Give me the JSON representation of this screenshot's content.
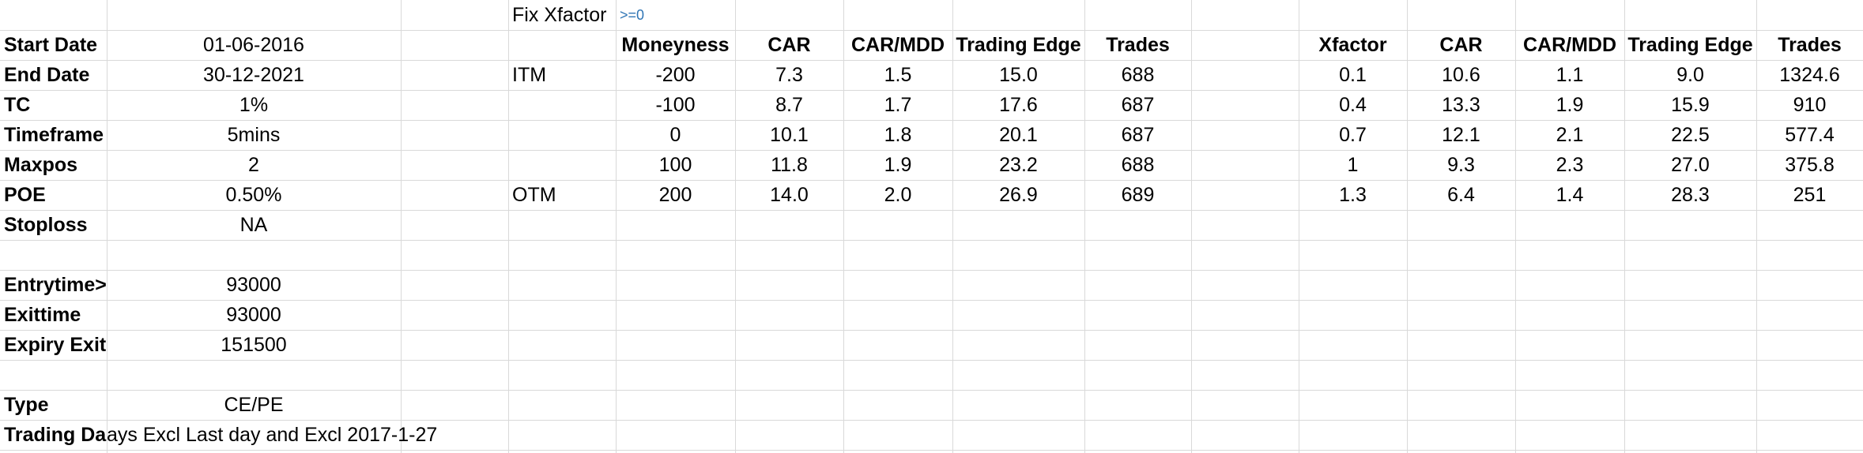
{
  "note": {
    "fix_xfactor": "Fix Xfactor",
    "condition": ">=0"
  },
  "params": [
    {
      "label": "Start Date",
      "value": "01-06-2016"
    },
    {
      "label": "End Date",
      "value": "30-12-2021"
    },
    {
      "label": "TC",
      "value": "1%"
    },
    {
      "label": "Timeframe",
      "value": "5mins"
    },
    {
      "label": "Maxpos",
      "value": "2"
    },
    {
      "label": "POE",
      "value": "0.50%"
    },
    {
      "label": "Stoploss",
      "value": "NA"
    },
    {
      "label": "",
      "value": ""
    },
    {
      "label": "Entrytime>",
      "value": "93000"
    },
    {
      "label": "Exittime",
      "value": "93000"
    },
    {
      "label": "Expiry Exit",
      "value": "151500"
    },
    {
      "label": "",
      "value": ""
    },
    {
      "label": "Type",
      "value": "CE/PE"
    }
  ],
  "trading_days": {
    "label": "Trading Da",
    "value": "ays Excl Last day and Excl 2017-1-27"
  },
  "moneyness_table": {
    "headers": [
      "Moneyness",
      "CAR",
      "CAR/MDD",
      "Trading Edge",
      "Trades"
    ],
    "rows": [
      {
        "tag": "ITM",
        "cells": [
          "-200",
          "7.3",
          "1.5",
          "15.0",
          "688"
        ]
      },
      {
        "tag": "",
        "cells": [
          "-100",
          "8.7",
          "1.7",
          "17.6",
          "687"
        ]
      },
      {
        "tag": "",
        "cells": [
          "0",
          "10.1",
          "1.8",
          "20.1",
          "687"
        ]
      },
      {
        "tag": "",
        "cells": [
          "100",
          "11.8",
          "1.9",
          "23.2",
          "688"
        ]
      },
      {
        "tag": "OTM",
        "cells": [
          "200",
          "14.0",
          "2.0",
          "26.9",
          "689"
        ]
      }
    ]
  },
  "xfactor_table": {
    "headers": [
      "Xfactor",
      "CAR",
      "CAR/MDD",
      "Trading Edge",
      "Trades"
    ],
    "rows": [
      [
        "0.1",
        "10.6",
        "1.1",
        "9.0",
        "1324.6"
      ],
      [
        "0.4",
        "13.3",
        "1.9",
        "15.9",
        "910"
      ],
      [
        "0.7",
        "12.1",
        "2.1",
        "22.5",
        "577.4"
      ],
      [
        "1",
        "9.3",
        "2.3",
        "27.0",
        "375.8"
      ],
      [
        "1.3",
        "6.4",
        "1.4",
        "28.3",
        "251"
      ]
    ]
  }
}
